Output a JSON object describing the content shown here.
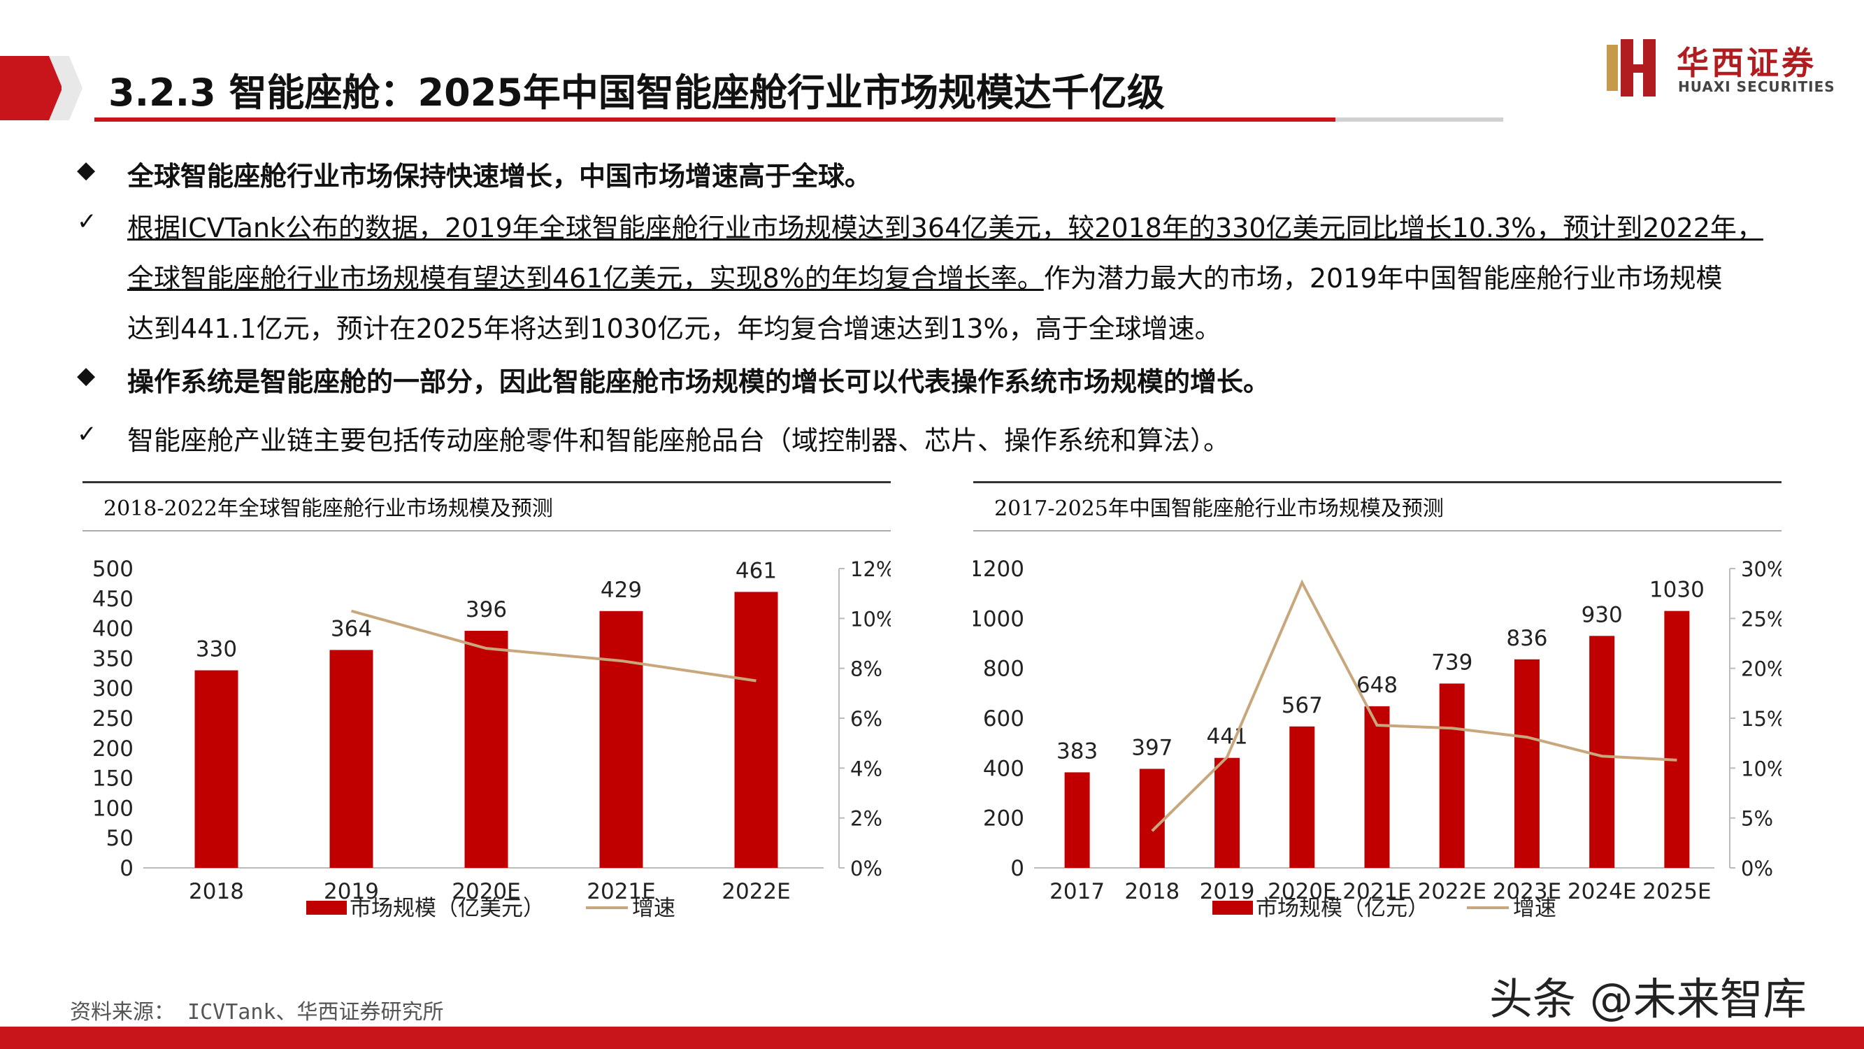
{
  "header": {
    "title": "3.2.3 智能座舱：2025年中国智能座舱行业市场规模达千亿级",
    "logo_cn": "华西证券",
    "logo_en": "HUAXI SECURITIES"
  },
  "colors": {
    "brand_red": "#c8151b",
    "bar": "#c00000",
    "line": "#c9a77c"
  },
  "bullets": {
    "b1": "全球智能座舱行业市场保持快速增长，中国市场增速高于全球。",
    "c1_line1": "根据ICVTank公布的数据，2019年全球智能座舱行业市场规模达到364亿美元，较2018年的330亿美元同比增长10.3%，预计到2022年，",
    "c1_line2_u": "全球智能座舱行业市场规模有望达到461亿美元，实现8%的年均复合增长率。",
    "c1_line2_rest": "作为潜力最大的市场，2019年中国智能座舱行业市场规模",
    "c1_line3": "达到441.1亿元，预计在2025年将达到1030亿元，年均复合增速达到13%，高于全球增速。",
    "b2": "操作系统是智能座舱的一部分，因此智能座舱市场规模的增长可以代表操作系统市场规模的增长。",
    "c2": "智能座舱产业链主要包括传动座舱零件和智能座舱品台（域控制器、芯片、操作系统和算法）。"
  },
  "chart_data": [
    {
      "type": "bar",
      "title": "2018-2022年全球智能座舱行业市场规模及预测",
      "categories": [
        "2018",
        "2019",
        "2020E",
        "2021E",
        "2022E"
      ],
      "series": [
        {
          "name": "市场规模（亿美元）",
          "type": "bar",
          "axis": "left",
          "values": [
            330,
            364,
            396,
            429,
            461
          ]
        },
        {
          "name": "增速",
          "type": "line",
          "axis": "right",
          "values": [
            null,
            10.3,
            8.8,
            8.3,
            7.5
          ]
        }
      ],
      "ylim": [
        0,
        500
      ],
      "yticks": [
        0,
        50,
        100,
        150,
        200,
        250,
        300,
        350,
        400,
        450,
        500
      ],
      "y2lim": [
        0,
        12
      ],
      "y2ticks": [
        "0%",
        "2%",
        "4%",
        "6%",
        "8%",
        "10%",
        "12%"
      ],
      "legend": "bottom"
    },
    {
      "type": "bar",
      "title": "2017-2025年中国智能座舱行业市场规模及预测",
      "categories": [
        "2017",
        "2018",
        "2019",
        "2020E",
        "2021E",
        "2022E",
        "2023E",
        "2024E",
        "2025E"
      ],
      "series": [
        {
          "name": "市场规模（亿元）",
          "type": "bar",
          "axis": "left",
          "values": [
            383,
            397,
            441,
            567,
            648,
            739,
            836,
            930,
            1030
          ]
        },
        {
          "name": "增速",
          "type": "line",
          "axis": "right",
          "values": [
            null,
            3.7,
            11.1,
            28.6,
            14.3,
            14.0,
            13.1,
            11.2,
            10.8
          ]
        }
      ],
      "ylim": [
        0,
        1200
      ],
      "yticks": [
        0,
        200,
        400,
        600,
        800,
        1000,
        1200
      ],
      "y2lim": [
        0,
        30
      ],
      "y2ticks": [
        "0%",
        "5%",
        "10%",
        "15%",
        "20%",
        "25%",
        "30%"
      ],
      "legend": "bottom"
    }
  ],
  "footer": {
    "source": "资料来源：  ICVTank、华西证券研究所",
    "watermark": "头条 @未来智库"
  }
}
